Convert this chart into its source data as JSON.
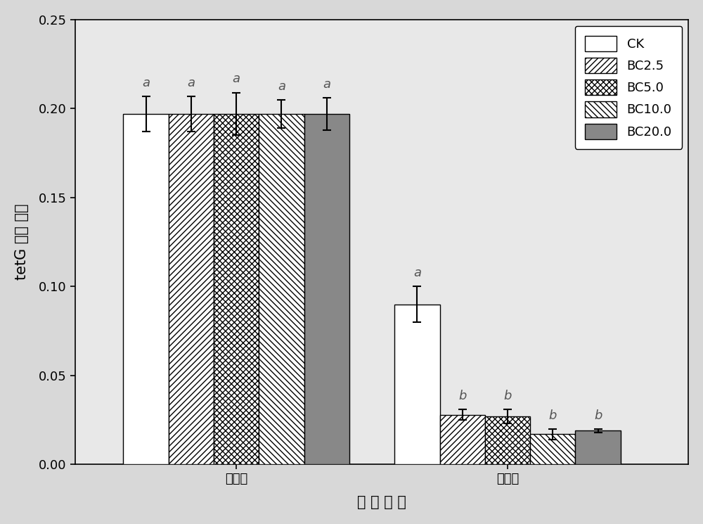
{
  "groups": [
    "堆肥前",
    "堆肥后"
  ],
  "series": [
    "CK",
    "BC2.5",
    "BC5.0",
    "BC10.0",
    "BC20.0"
  ],
  "values": [
    [
      0.197,
      0.197,
      0.197,
      0.197,
      0.197
    ],
    [
      0.09,
      0.028,
      0.027,
      0.017,
      0.019
    ]
  ],
  "errors": [
    [
      0.01,
      0.01,
      0.012,
      0.008,
      0.009
    ],
    [
      0.01,
      0.003,
      0.004,
      0.003,
      0.001
    ]
  ],
  "sig_labels_group0": [
    "a",
    "a",
    "a",
    "a",
    "a"
  ],
  "sig_labels_group1": [
    "a",
    "b",
    "b",
    "b",
    "b"
  ],
  "ylabel": "tetG 相对 丰度",
  "xlabel": "堆 肥 时 期",
  "ylim": [
    0,
    0.25
  ],
  "yticks": [
    0.0,
    0.05,
    0.1,
    0.15,
    0.2,
    0.25
  ],
  "legend_labels": [
    "CK",
    "BC2.5",
    "BC5.0",
    "BC10.0",
    "BC20.0"
  ],
  "bar_width": 0.07,
  "group_centers": [
    0.3,
    0.72
  ],
  "face_colors": [
    "white",
    "white",
    "white",
    "white",
    "#888888"
  ],
  "edge_colors": [
    "black",
    "black",
    "black",
    "black",
    "black"
  ],
  "hatch_patterns": [
    "",
    "////",
    "xxxx",
    "\\\\\\\\",
    ""
  ],
  "background_color": "#e8e8e8",
  "sig_fontsize": 13,
  "axis_label_fontsize": 15,
  "tick_fontsize": 13,
  "legend_fontsize": 13
}
